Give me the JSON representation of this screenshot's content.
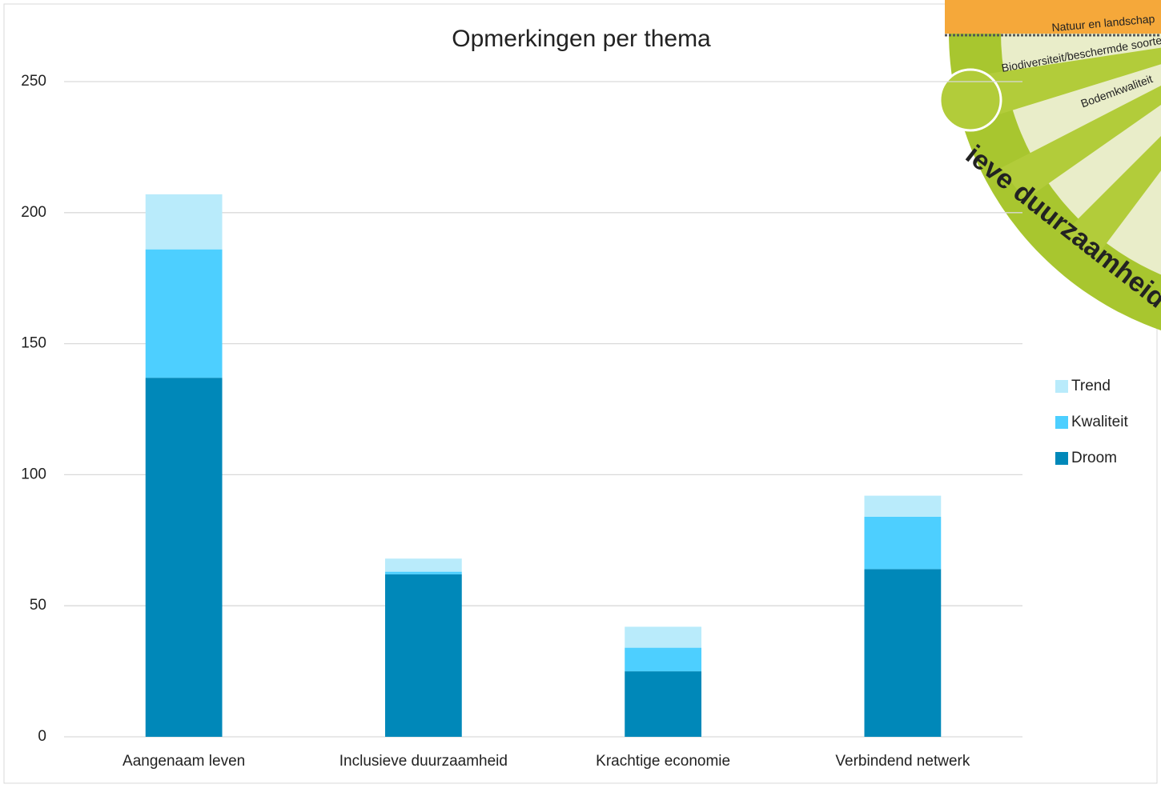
{
  "chart_data": {
    "type": "bar",
    "stacked": true,
    "title": "Opmerkingen per thema",
    "categories": [
      "Aangenaam leven",
      "Inclusieve duurzaamheid",
      "Krachtige economie",
      "Verbindend netwerk"
    ],
    "series": [
      {
        "name": "Droom",
        "color": "#0088b9",
        "values": [
          137,
          62,
          25,
          64
        ]
      },
      {
        "name": "Kwaliteit",
        "color": "#4dcfff",
        "values": [
          49,
          1,
          9,
          20
        ]
      },
      {
        "name": "Trend",
        "color": "#b9ebfb",
        "values": [
          21,
          5,
          8,
          8
        ]
      }
    ],
    "ylim": [
      0,
      250
    ],
    "yticks": [
      0,
      50,
      100,
      150,
      200,
      250
    ],
    "grid": true,
    "legend": "right",
    "annotations": [
      "Natuur en landschap",
      "Biodiversiteit/beschermde soorten",
      "Bodemkwaliteit",
      "ieve duurzaamheid"
    ]
  }
}
